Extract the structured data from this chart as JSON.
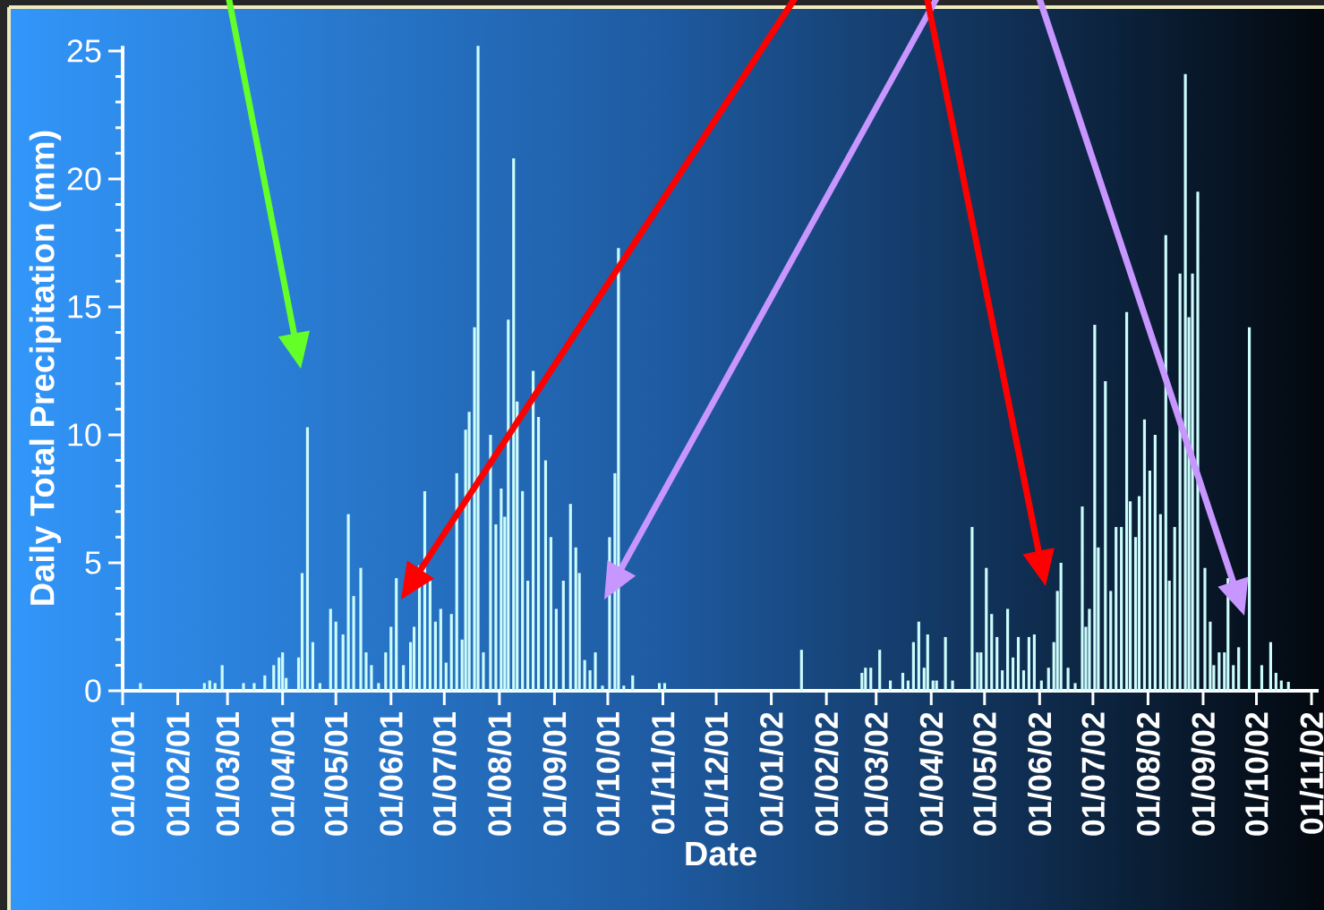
{
  "chart_data": {
    "type": "bar",
    "xlabel": "Date",
    "ylabel": "Daily Total Precipitation (mm)",
    "color": "#ccfcfc",
    "xlim": [
      "2001-01-01",
      "2002-11-05"
    ],
    "ylim": [
      0,
      25.2
    ],
    "yticks": [
      0,
      5,
      10,
      15,
      20,
      25
    ],
    "xticks": [
      {
        "value": "2001-01-01",
        "label": "01/01/01"
      },
      {
        "value": "2001-02-01",
        "label": "01/02/01"
      },
      {
        "value": "2001-03-01",
        "label": "01/03/01"
      },
      {
        "value": "2001-04-01",
        "label": "01/04/01"
      },
      {
        "value": "2001-05-01",
        "label": "01/05/01"
      },
      {
        "value": "2001-06-01",
        "label": "01/06/01"
      },
      {
        "value": "2001-07-01",
        "label": "01/07/01"
      },
      {
        "value": "2001-08-01",
        "label": "01/08/01"
      },
      {
        "value": "2001-09-01",
        "label": "01/09/01"
      },
      {
        "value": "2001-10-01",
        "label": "01/10/01"
      },
      {
        "value": "2001-11-01",
        "label": "01/11/01"
      },
      {
        "value": "2001-12-01",
        "label": "01/12/01"
      },
      {
        "value": "2002-01-01",
        "label": "01/01/02"
      },
      {
        "value": "2002-02-01",
        "label": "01/02/02"
      },
      {
        "value": "2002-03-01",
        "label": "01/03/02"
      },
      {
        "value": "2002-04-01",
        "label": "01/04/02"
      },
      {
        "value": "2002-05-01",
        "label": "01/05/02"
      },
      {
        "value": "2002-06-01",
        "label": "01/06/02"
      },
      {
        "value": "2002-07-01",
        "label": "01/07/02"
      },
      {
        "value": "2002-08-01",
        "label": "01/08/02"
      },
      {
        "value": "2002-09-01",
        "label": "01/09/02"
      },
      {
        "value": "2002-10-01",
        "label": "01/10/02"
      },
      {
        "value": "2002-11-01",
        "label": "01/11/02"
      }
    ],
    "x": [
      "2001-01-11",
      "2001-02-16",
      "2001-02-19",
      "2001-02-22",
      "2001-02-26",
      "2001-03-10",
      "2001-03-16",
      "2001-03-22",
      "2001-03-27",
      "2001-03-30",
      "2001-04-01",
      "2001-04-03",
      "2001-04-10",
      "2001-04-12",
      "2001-04-15",
      "2001-04-18",
      "2001-04-22",
      "2001-04-28",
      "2001-05-01",
      "2001-05-05",
      "2001-05-08",
      "2001-05-11",
      "2001-05-15",
      "2001-05-18",
      "2001-05-21",
      "2001-05-25",
      "2001-05-29",
      "2001-06-01",
      "2001-06-04",
      "2001-06-08",
      "2001-06-12",
      "2001-06-14",
      "2001-06-17",
      "2001-06-20",
      "2001-06-23",
      "2001-06-26",
      "2001-06-29",
      "2001-07-02",
      "2001-07-05",
      "2001-07-08",
      "2001-07-11",
      "2001-07-13",
      "2001-07-15",
      "2001-07-18",
      "2001-07-20",
      "2001-07-23",
      "2001-07-27",
      "2001-07-30",
      "2001-08-02",
      "2001-08-04",
      "2001-08-06",
      "2001-08-09",
      "2001-08-11",
      "2001-08-14",
      "2001-08-17",
      "2001-08-20",
      "2001-08-23",
      "2001-08-27",
      "2001-08-30",
      "2001-09-02",
      "2001-09-06",
      "2001-09-10",
      "2001-09-13",
      "2001-09-15",
      "2001-09-18",
      "2001-09-21",
      "2001-09-24",
      "2001-09-28",
      "2001-10-02",
      "2001-10-05",
      "2001-10-07",
      "2001-10-10",
      "2001-10-15",
      "2001-10-30",
      "2001-11-02",
      "2002-01-18",
      "2002-02-21",
      "2002-02-23",
      "2002-02-26",
      "2002-03-03",
      "2002-03-09",
      "2002-03-16",
      "2002-03-19",
      "2002-03-22",
      "2002-03-25",
      "2002-03-28",
      "2002-03-30",
      "2002-04-02",
      "2002-04-04",
      "2002-04-09",
      "2002-04-13",
      "2002-04-24",
      "2002-04-27",
      "2002-04-29",
      "2002-05-02",
      "2002-05-05",
      "2002-05-08",
      "2002-05-11",
      "2002-05-14",
      "2002-05-17",
      "2002-05-20",
      "2002-05-23",
      "2002-05-26",
      "2002-05-29",
      "2002-06-02",
      "2002-06-06",
      "2002-06-09",
      "2002-06-11",
      "2002-06-13",
      "2002-06-17",
      "2002-06-21",
      "2002-06-25",
      "2002-06-27",
      "2002-06-29",
      "2002-07-02",
      "2002-07-04",
      "2002-07-08",
      "2002-07-11",
      "2002-07-14",
      "2002-07-17",
      "2002-07-20",
      "2002-07-22",
      "2002-07-25",
      "2002-07-27",
      "2002-07-30",
      "2002-08-02",
      "2002-08-05",
      "2002-08-08",
      "2002-08-11",
      "2002-08-13",
      "2002-08-16",
      "2002-08-19",
      "2002-08-22",
      "2002-08-24",
      "2002-08-26",
      "2002-08-29",
      "2002-09-02",
      "2002-09-05",
      "2002-09-07",
      "2002-09-10",
      "2002-09-13",
      "2002-09-15",
      "2002-09-18",
      "2002-09-21",
      "2002-09-27",
      "2002-10-04",
      "2002-10-09",
      "2002-10-12",
      "2002-10-15",
      "2002-10-19"
    ],
    "values": [
      0.3,
      0.3,
      0.4,
      0.3,
      1.0,
      0.3,
      0.3,
      0.6,
      1.0,
      1.3,
      1.5,
      0.5,
      1.3,
      4.6,
      10.3,
      1.9,
      0.3,
      3.2,
      2.7,
      2.2,
      6.9,
      3.7,
      4.8,
      1.5,
      1.0,
      0.3,
      1.5,
      2.5,
      4.4,
      1.0,
      1.9,
      2.5,
      4.9,
      7.8,
      4.3,
      2.7,
      3.2,
      1.1,
      3.0,
      8.5,
      2.0,
      10.2,
      10.9,
      14.2,
      25.2,
      1.5,
      10.0,
      6.5,
      7.9,
      6.8,
      14.5,
      20.8,
      11.3,
      7.8,
      4.3,
      12.5,
      10.7,
      9.0,
      6.0,
      3.2,
      4.3,
      7.3,
      5.6,
      4.6,
      1.2,
      0.8,
      1.5,
      0.2,
      6.0,
      8.5,
      17.3,
      0.2,
      0.6,
      0.3,
      0.3,
      1.6,
      0.7,
      0.9,
      0.9,
      1.6,
      0.4,
      0.7,
      0.4,
      1.9,
      2.7,
      0.9,
      2.2,
      0.4,
      0.4,
      2.1,
      0.4,
      6.4,
      1.5,
      1.5,
      4.8,
      3.0,
      2.1,
      0.8,
      3.2,
      1.3,
      2.1,
      0.8,
      2.1,
      2.2,
      0.4,
      0.9,
      1.9,
      3.9,
      5.0,
      0.9,
      0.3,
      7.2,
      2.5,
      3.2,
      14.3,
      5.6,
      12.1,
      3.9,
      6.4,
      6.4,
      14.8,
      7.4,
      6.0,
      7.6,
      10.6,
      8.6,
      10.0,
      6.9,
      17.8,
      4.3,
      6.4,
      16.3,
      24.1,
      14.6,
      16.3,
      19.5,
      4.8,
      2.7,
      1.0,
      1.5,
      1.5,
      4.4,
      1.0,
      1.7,
      14.2,
      1.0,
      1.9,
      0.7,
      0.4,
      0.35
    ]
  }
}
